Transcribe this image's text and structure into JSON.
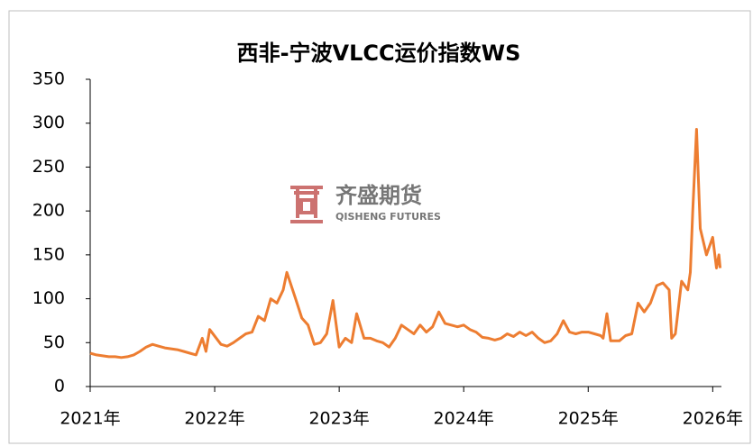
{
  "chart_data": {
    "type": "line",
    "title": "西非-宁波VLCC运价指数WS",
    "watermark": {
      "name": "齐盛期货",
      "subname": "QISHENG FUTURES"
    },
    "x": [
      2021.0,
      2021.05,
      2021.1,
      2021.15,
      2021.2,
      2021.25,
      2021.3,
      2021.35,
      2021.4,
      2021.45,
      2021.5,
      2021.55,
      2021.6,
      2021.65,
      2021.7,
      2021.75,
      2021.8,
      2021.85,
      2021.9,
      2021.93,
      2021.96,
      2022.05,
      2022.1,
      2022.15,
      2022.2,
      2022.25,
      2022.3,
      2022.35,
      2022.4,
      2022.45,
      2022.5,
      2022.55,
      2022.58,
      2022.65,
      2022.7,
      2022.75,
      2022.8,
      2022.85,
      2022.9,
      2022.95,
      2023.0,
      2023.05,
      2023.1,
      2023.14,
      2023.2,
      2023.25,
      2023.3,
      2023.35,
      2023.4,
      2023.45,
      2023.5,
      2023.55,
      2023.6,
      2023.65,
      2023.7,
      2023.75,
      2023.8,
      2023.85,
      2023.9,
      2023.95,
      2024.0,
      2024.05,
      2024.1,
      2024.15,
      2024.2,
      2024.25,
      2024.3,
      2024.35,
      2024.4,
      2024.45,
      2024.5,
      2024.55,
      2024.6,
      2024.65,
      2024.7,
      2024.75,
      2024.8,
      2024.85,
      2024.9,
      2024.95,
      2025.0,
      2025.05,
      2025.1,
      2025.12,
      2025.15,
      2025.18,
      2025.25,
      2025.3,
      2025.35,
      2025.4,
      2025.45,
      2025.5,
      2025.55,
      2025.6,
      2025.65,
      2025.67,
      2025.7,
      2025.75,
      2025.8,
      2025.82,
      2025.84,
      2025.87,
      2025.9,
      2025.95,
      2026.0,
      2026.03,
      2026.05,
      2026.06
    ],
    "values": [
      38,
      36,
      35,
      34,
      34,
      33,
      34,
      36,
      40,
      45,
      48,
      46,
      44,
      43,
      42,
      40,
      38,
      36,
      55,
      40,
      65,
      48,
      46,
      50,
      55,
      60,
      62,
      80,
      75,
      100,
      95,
      110,
      130,
      100,
      78,
      70,
      48,
      50,
      60,
      98,
      45,
      55,
      50,
      83,
      55,
      55,
      52,
      50,
      45,
      55,
      70,
      65,
      60,
      70,
      62,
      68,
      85,
      72,
      70,
      68,
      70,
      65,
      62,
      56,
      55,
      53,
      55,
      60,
      57,
      62,
      58,
      62,
      55,
      50,
      52,
      60,
      75,
      62,
      60,
      62,
      62,
      60,
      58,
      55,
      83,
      52,
      52,
      58,
      60,
      95,
      85,
      95,
      115,
      118,
      110,
      55,
      60,
      120,
      110,
      130,
      200,
      293,
      180,
      150,
      170,
      135,
      150,
      135
    ],
    "color": "#ed7d31",
    "xlim": [
      2021.0,
      2026.07
    ],
    "xticks": [
      {
        "value": 2021,
        "label": "2021年"
      },
      {
        "value": 2022,
        "label": "2022年"
      },
      {
        "value": 2023,
        "label": "2023年"
      },
      {
        "value": 2024,
        "label": "2024年"
      },
      {
        "value": 2025,
        "label": "2025年"
      },
      {
        "value": 2026,
        "label": "2026年"
      }
    ],
    "ylim": [
      0,
      350
    ],
    "yticks": [
      0,
      50,
      100,
      150,
      200,
      250,
      300,
      350
    ],
    "grid": false
  }
}
